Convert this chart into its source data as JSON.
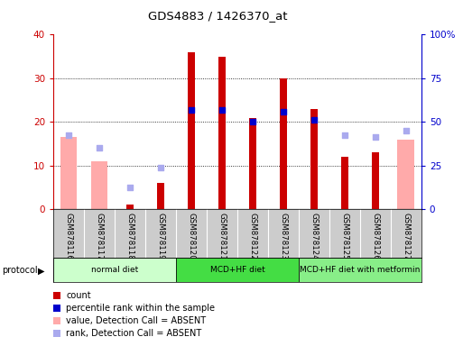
{
  "title": "GDS4883 / 1426370_at",
  "samples": [
    "GSM878116",
    "GSM878117",
    "GSM878118",
    "GSM878119",
    "GSM878120",
    "GSM878121",
    "GSM878122",
    "GSM878123",
    "GSM878124",
    "GSM878125",
    "GSM878126",
    "GSM878127"
  ],
  "count": [
    0,
    0,
    1,
    6,
    36,
    35,
    21,
    30,
    23,
    12,
    13,
    0
  ],
  "percentile_right": [
    0,
    0,
    0,
    0,
    57,
    57,
    50,
    56,
    51,
    0,
    0,
    0
  ],
  "value_absent": [
    16.5,
    11,
    0,
    0,
    0,
    0,
    0,
    0,
    0,
    0,
    0,
    16
  ],
  "rank_absent": [
    17,
    14,
    5,
    9.5,
    0,
    0,
    0,
    0,
    0,
    17,
    16.5,
    18
  ],
  "protocols": [
    {
      "label": "normal diet",
      "start": 0,
      "end": 3,
      "color": "#ccffcc"
    },
    {
      "label": "MCD+HF diet",
      "start": 4,
      "end": 7,
      "color": "#44dd44"
    },
    {
      "label": "MCD+HF diet with metformin",
      "start": 8,
      "end": 11,
      "color": "#88ee88"
    }
  ],
  "ylim_left": [
    0,
    40
  ],
  "ylim_right": [
    0,
    100
  ],
  "left_ticks": [
    0,
    10,
    20,
    30,
    40
  ],
  "right_ticks": [
    0,
    25,
    50,
    75,
    100
  ],
  "right_tick_labels": [
    "0",
    "25",
    "50",
    "75",
    "100%"
  ],
  "count_color": "#cc0000",
  "percentile_color": "#0000cc",
  "value_absent_color": "#ffaaaa",
  "rank_absent_color": "#aaaaee",
  "left_axis_color": "#cc0000",
  "right_axis_color": "#0000cc",
  "plot_bg": "#ffffff",
  "tick_area_bg": "#cccccc",
  "legend_items": [
    {
      "color": "#cc0000",
      "label": "count"
    },
    {
      "color": "#0000cc",
      "label": "percentile rank within the sample"
    },
    {
      "color": "#ffaaaa",
      "label": "value, Detection Call = ABSENT"
    },
    {
      "color": "#aaaaee",
      "label": "rank, Detection Call = ABSENT"
    }
  ]
}
